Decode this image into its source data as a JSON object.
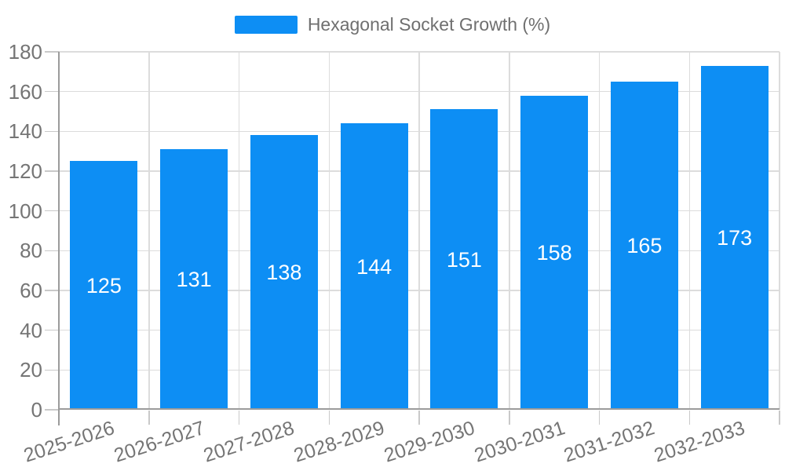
{
  "legend": {
    "items": [
      {
        "label": "Hexagonal Socket Growth (%)"
      }
    ]
  },
  "chart_data": {
    "type": "bar",
    "title": "",
    "categories": [
      "2025-2026",
      "2026-2027",
      "2027-2028",
      "2028-2029",
      "2029-2030",
      "2030-2031",
      "2031-2032",
      "2032-2033"
    ],
    "series": [
      {
        "name": "Hexagonal Socket Growth (%)",
        "values": [
          125,
          131,
          138,
          144,
          151,
          158,
          165,
          173
        ],
        "color": "#0d8ef4"
      }
    ],
    "xlabel": "",
    "ylabel": "",
    "ylim": [
      0,
      180
    ],
    "ytick_interval": 20,
    "yticks": [
      0,
      20,
      40,
      60,
      80,
      100,
      120,
      140,
      160,
      180
    ],
    "grid": true,
    "legend_position": "top-center",
    "data_labels_position": "inside-center",
    "colors": {
      "bar": "#0d8ef4",
      "data_label": "#ffffff",
      "axis_line": "#9b9b9b",
      "gridline": "#dcdcdc",
      "tick": "#c9c9c9",
      "axis_text": "#757575",
      "legend_text": "#6f6f6f",
      "background": "#ffffff"
    }
  }
}
